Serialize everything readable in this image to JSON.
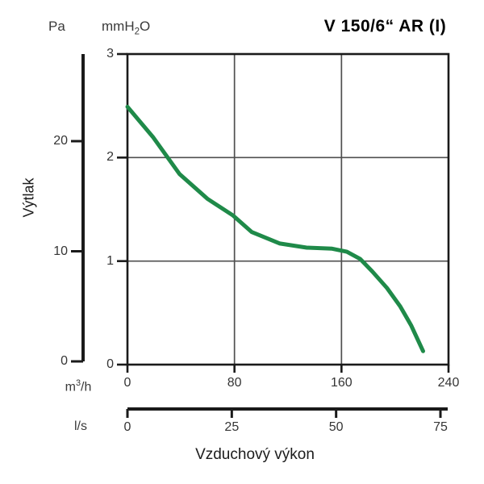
{
  "title": "V 150/6“ AR (I)",
  "ylabel": "Výtlak",
  "xlabel": "Vzduchový výkon",
  "units": {
    "pa": "Pa",
    "mmh2o": {
      "pre": "mmH",
      "sub": "2",
      "post": "O"
    },
    "m3h": {
      "pre": "m",
      "sup": "3",
      "post": "/h"
    },
    "ls": "l/s"
  },
  "colors": {
    "curve": "#1f8a49",
    "axis": "#1a1a1a",
    "grid": "#4f4f4f",
    "text": "#353535"
  },
  "chart_data": {
    "type": "line",
    "title": "V 150/6“ AR (I)",
    "xlabel": "Vzduchový výkon",
    "ylabel": "Výtlak",
    "x_axis_m3h": {
      "unit": "m³/h",
      "range": [
        0,
        240
      ],
      "ticks": [
        0,
        80,
        160,
        240
      ]
    },
    "x_axis_ls": {
      "unit": "l/s",
      "range": [
        0,
        75
      ],
      "ticks": [
        0,
        25,
        50,
        75
      ]
    },
    "y_axis_mmh2o": {
      "unit": "mmH₂O",
      "range": [
        0,
        3
      ],
      "ticks": [
        0,
        1,
        2,
        3
      ]
    },
    "y_axis_pa": {
      "unit": "Pa",
      "range": [
        0,
        20
      ],
      "ticks": [
        0,
        10,
        20
      ]
    },
    "grid": {
      "x_m3h": [
        80,
        160
      ],
      "y_mmh2o": [
        1,
        2
      ]
    },
    "legend": "none",
    "series": [
      {
        "name": "V 150/6“ AR (I)",
        "color": "#1f8a49",
        "x_unit": "m³/h",
        "y_unit": "mmH₂O",
        "points": [
          [
            0,
            2.49
          ],
          [
            19,
            2.2
          ],
          [
            39,
            1.84
          ],
          [
            60,
            1.6
          ],
          [
            79,
            1.44
          ],
          [
            93,
            1.28
          ],
          [
            114,
            1.17
          ],
          [
            134,
            1.13
          ],
          [
            153,
            1.12
          ],
          [
            164,
            1.09
          ],
          [
            174,
            1.02
          ],
          [
            183,
            0.9
          ],
          [
            194,
            0.74
          ],
          [
            204,
            0.56
          ],
          [
            212,
            0.38
          ],
          [
            221,
            0.13
          ]
        ]
      }
    ]
  }
}
